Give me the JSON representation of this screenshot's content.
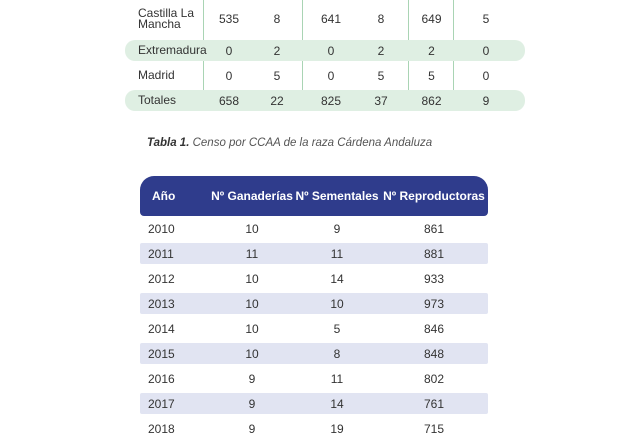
{
  "regions_table": {
    "rows": [
      {
        "name": "Castilla La Mancha",
        "v": [
          "535",
          "8",
          "641",
          "8",
          "649",
          "5"
        ]
      },
      {
        "name": "Extremadura",
        "v": [
          "0",
          "2",
          "0",
          "2",
          "2",
          "0"
        ]
      },
      {
        "name": "Madrid",
        "v": [
          "0",
          "5",
          "0",
          "5",
          "5",
          "0"
        ]
      },
      {
        "name": "Totales",
        "v": [
          "658",
          "22",
          "825",
          "37",
          "862",
          "9"
        ]
      }
    ]
  },
  "caption": {
    "label": "Tabla 1.",
    "text": " Censo por CCAA de la raza Cárdena Andaluza"
  },
  "census_table": {
    "headers": [
      "Año",
      "Nº Ganaderías",
      "Nº Sementales",
      "Nº Reproductoras"
    ],
    "rows": [
      [
        "2010",
        "10",
        "9",
        "861"
      ],
      [
        "2011",
        "11",
        "11",
        "881"
      ],
      [
        "2012",
        "10",
        "14",
        "933"
      ],
      [
        "2013",
        "10",
        "10",
        "973"
      ],
      [
        "2014",
        "10",
        "5",
        "846"
      ],
      [
        "2015",
        "10",
        "8",
        "848"
      ],
      [
        "2016",
        "9",
        "11",
        "802"
      ],
      [
        "2017",
        "9",
        "14",
        "761"
      ],
      [
        "2018",
        "9",
        "19",
        "715"
      ]
    ]
  },
  "colors": {
    "green_band": "#dfefe3",
    "green_line": "#a9d4b4",
    "blue_header": "#2f3c8c",
    "blue_band": "#e1e4f2"
  }
}
